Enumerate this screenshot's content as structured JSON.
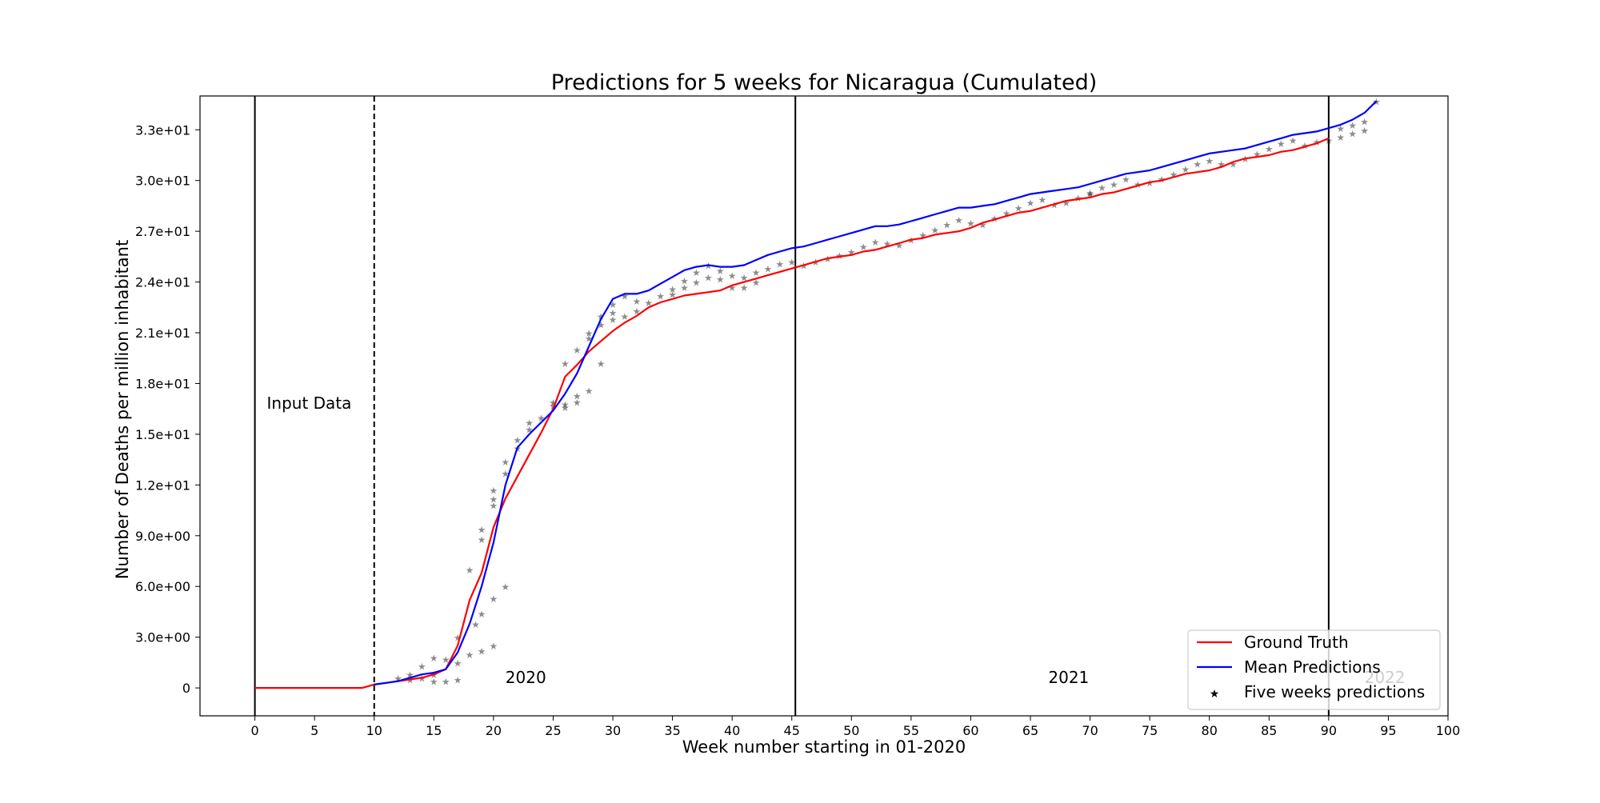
{
  "chart_data": {
    "type": "line",
    "title": "Predictions for 5 weeks for Nicaragua (Cumulated)",
    "xlabel": "Week number starting in 01-2020",
    "ylabel": "Number of Deaths per million inhabitant",
    "xlim": [
      -4.6,
      100
    ],
    "ylim": [
      -1.65,
      35.0
    ],
    "x_ticks": [
      0,
      5,
      10,
      15,
      20,
      25,
      30,
      35,
      40,
      45,
      50,
      55,
      60,
      65,
      70,
      75,
      80,
      85,
      90,
      95,
      100
    ],
    "x_tick_labels": [
      "0",
      "5",
      "10",
      "15",
      "20",
      "25",
      "30",
      "35",
      "40",
      "45",
      "50",
      "55",
      "60",
      "65",
      "70",
      "75",
      "80",
      "85",
      "90",
      "95",
      "100"
    ],
    "y_ticks": [
      0,
      3,
      6,
      9,
      12,
      15,
      18,
      21,
      24,
      27,
      30,
      33
    ],
    "y_tick_labels": [
      "0",
      "3.0e+00",
      "6.0e+00",
      "9.0e+00",
      "1.2e+01",
      "1.5e+01",
      "1.8e+01",
      "2.1e+01",
      "2.4e+01",
      "2.7e+01",
      "3.0e+01",
      "3.3e+01"
    ],
    "grid": false,
    "legend_position": "lower-right",
    "vertical_lines": [
      {
        "x": 0,
        "style": "solid"
      },
      {
        "x": 10,
        "style": "dashed"
      },
      {
        "x": 45.3,
        "style": "solid"
      },
      {
        "x": 90,
        "style": "solid"
      }
    ],
    "annotations": [
      {
        "text": "Input Data",
        "x": 1,
        "y": 16.5,
        "color": "#000000"
      },
      {
        "text": "2020",
        "x": 21,
        "y": 0.3,
        "color": "#000000"
      },
      {
        "text": "2021",
        "x": 66.5,
        "y": 0.3,
        "color": "#000000"
      },
      {
        "text": "2022",
        "x": 93,
        "y": 0.3,
        "color": "#bbbbbb"
      }
    ],
    "series": [
      {
        "name": "Ground Truth",
        "color": "#ff0000",
        "x": [
          0,
          1,
          2,
          3,
          4,
          5,
          6,
          7,
          8,
          9,
          10,
          11,
          12,
          13,
          14,
          15,
          16,
          17,
          18,
          19,
          20,
          21,
          22,
          23,
          24,
          25,
          26,
          27,
          28,
          29,
          30,
          31,
          32,
          33,
          34,
          35,
          36,
          37,
          38,
          39,
          40,
          41,
          42,
          43,
          44,
          45,
          46,
          47,
          48,
          49,
          50,
          51,
          52,
          53,
          54,
          55,
          56,
          57,
          58,
          59,
          60,
          61,
          62,
          63,
          64,
          65,
          66,
          67,
          68,
          69,
          70,
          71,
          72,
          73,
          74,
          75,
          76,
          77,
          78,
          79,
          80,
          81,
          82,
          83,
          84,
          85,
          86,
          87,
          88,
          89,
          90
        ],
        "values": [
          0,
          0,
          0,
          0,
          0,
          0,
          0,
          0,
          0,
          0,
          0.2,
          0.3,
          0.4,
          0.5,
          0.6,
          0.8,
          1.1,
          2.5,
          5.2,
          6.8,
          9.5,
          11.2,
          12.5,
          13.8,
          15.1,
          16.5,
          18.4,
          19.1,
          19.9,
          20.5,
          21.1,
          21.6,
          22.0,
          22.5,
          22.8,
          23.0,
          23.2,
          23.3,
          23.4,
          23.5,
          23.8,
          24.0,
          24.2,
          24.4,
          24.6,
          24.8,
          25.0,
          25.2,
          25.4,
          25.5,
          25.6,
          25.8,
          25.9,
          26.1,
          26.3,
          26.5,
          26.6,
          26.8,
          26.9,
          27.0,
          27.2,
          27.5,
          27.7,
          27.9,
          28.1,
          28.2,
          28.4,
          28.6,
          28.8,
          28.9,
          29.0,
          29.2,
          29.3,
          29.5,
          29.7,
          29.9,
          30.0,
          30.2,
          30.4,
          30.5,
          30.6,
          30.8,
          31.1,
          31.3,
          31.4,
          31.5,
          31.7,
          31.8,
          32.0,
          32.2,
          32.5
        ]
      },
      {
        "name": "Mean Predictions",
        "color": "#0000ff",
        "x": [
          10,
          11,
          12,
          13,
          14,
          15,
          16,
          17,
          18,
          19,
          20,
          21,
          22,
          23,
          24,
          25,
          26,
          27,
          28,
          29,
          30,
          31,
          32,
          33,
          34,
          35,
          36,
          37,
          38,
          39,
          40,
          41,
          42,
          43,
          44,
          45,
          46,
          47,
          48,
          49,
          50,
          51,
          52,
          53,
          54,
          55,
          56,
          57,
          58,
          59,
          60,
          61,
          62,
          63,
          64,
          65,
          66,
          67,
          68,
          69,
          70,
          71,
          72,
          73,
          74,
          75,
          76,
          77,
          78,
          79,
          80,
          81,
          82,
          83,
          84,
          85,
          86,
          87,
          88,
          89,
          90,
          91,
          92,
          93,
          94
        ],
        "values": [
          0.2,
          0.3,
          0.4,
          0.6,
          0.8,
          0.9,
          1.1,
          2.1,
          3.8,
          6.0,
          8.6,
          12.0,
          14.2,
          15.0,
          15.7,
          16.4,
          17.4,
          18.6,
          20.2,
          21.8,
          23.0,
          23.3,
          23.3,
          23.5,
          23.9,
          24.3,
          24.7,
          24.9,
          25.0,
          24.9,
          24.9,
          25.0,
          25.3,
          25.6,
          25.8,
          26.0,
          26.1,
          26.3,
          26.5,
          26.7,
          26.9,
          27.1,
          27.3,
          27.3,
          27.4,
          27.6,
          27.8,
          28.0,
          28.2,
          28.4,
          28.4,
          28.5,
          28.6,
          28.8,
          29.0,
          29.2,
          29.3,
          29.4,
          29.5,
          29.6,
          29.8,
          30.0,
          30.2,
          30.4,
          30.5,
          30.6,
          30.8,
          31.0,
          31.2,
          31.4,
          31.6,
          31.7,
          31.8,
          31.9,
          32.1,
          32.3,
          32.5,
          32.7,
          32.8,
          32.9,
          33.1,
          33.3,
          33.6,
          34.0,
          34.7
        ]
      }
    ],
    "scatter": {
      "name": "Five weeks predictions",
      "marker": "star",
      "legend_color": "#9fd0e8",
      "points": [
        {
          "x": 12,
          "y": 0.6,
          "c": "#f5b041"
        },
        {
          "x": 13,
          "y": 0.8,
          "c": "#f5b041"
        },
        {
          "x": 14,
          "y": 1.3,
          "c": "#f5b041"
        },
        {
          "x": 15,
          "y": 1.8,
          "c": "#f5b041"
        },
        {
          "x": 16,
          "y": 1.7,
          "c": "#f5b041"
        },
        {
          "x": 13,
          "y": 0.5,
          "c": "#1f77b4"
        },
        {
          "x": 14,
          "y": 0.6,
          "c": "#1f77b4"
        },
        {
          "x": 15,
          "y": 0.8,
          "c": "#1f77b4"
        },
        {
          "x": 15,
          "y": 0.4,
          "c": "#8c564b"
        },
        {
          "x": 16,
          "y": 0.4,
          "c": "#8c564b"
        },
        {
          "x": 17,
          "y": 0.5,
          "c": "#8c564b"
        },
        {
          "x": 17,
          "y": 1.5,
          "c": "#9467bd"
        },
        {
          "x": 18,
          "y": 2.0,
          "c": "#9467bd"
        },
        {
          "x": 19,
          "y": 2.2,
          "c": "#e377c2"
        },
        {
          "x": 20,
          "y": 2.5,
          "c": "#e377c2"
        },
        {
          "x": 17,
          "y": 3.0,
          "c": "#bcbd22"
        },
        {
          "x": 18,
          "y": 7.0,
          "c": "#bcbd22"
        },
        {
          "x": 19,
          "y": 8.8,
          "c": "#bcbd22"
        },
        {
          "x": 20,
          "y": 10.8,
          "c": "#bcbd22"
        },
        {
          "x": 21,
          "y": 12.7,
          "c": "#bcbd22"
        },
        {
          "x": 19,
          "y": 9.4,
          "c": "#17becf"
        },
        {
          "x": 20,
          "y": 11.7,
          "c": "#17becf"
        },
        {
          "x": 21,
          "y": 13.4,
          "c": "#17becf"
        },
        {
          "x": 22,
          "y": 14.7,
          "c": "#17becf"
        },
        {
          "x": 23,
          "y": 15.7,
          "c": "#17becf"
        },
        {
          "x": 19,
          "y": 4.4,
          "c": "#7f7f7f"
        },
        {
          "x": 20,
          "y": 5.3,
          "c": "#7f7f7f"
        },
        {
          "x": 21,
          "y": 6.0,
          "c": "#7f7f7f"
        },
        {
          "x": 18.5,
          "y": 3.8,
          "c": "#8c564b"
        },
        {
          "x": 20,
          "y": 11.2,
          "c": "#9467bd"
        },
        {
          "x": 22,
          "y": 14.2,
          "c": "#2ca02c"
        },
        {
          "x": 23,
          "y": 15.3,
          "c": "#2ca02c"
        },
        {
          "x": 24,
          "y": 16.0,
          "c": "#2ca02c"
        },
        {
          "x": 25,
          "y": 16.7,
          "c": "#2ca02c"
        },
        {
          "x": 25,
          "y": 16.9,
          "c": "#ff7f0e"
        },
        {
          "x": 26,
          "y": 16.6,
          "c": "#ff7f0e"
        },
        {
          "x": 27,
          "y": 16.9,
          "c": "#ff7f0e"
        },
        {
          "x": 26,
          "y": 19.2,
          "c": "#e377c2"
        },
        {
          "x": 27,
          "y": 20.0,
          "c": "#8c564b"
        },
        {
          "x": 28,
          "y": 20.7,
          "c": "#bcbd22"
        },
        {
          "x": 29,
          "y": 21.5,
          "c": "#bcbd22"
        },
        {
          "x": 30,
          "y": 22.2,
          "c": "#7f7f7f"
        },
        {
          "x": 26,
          "y": 16.8,
          "c": "#7f7f7f"
        },
        {
          "x": 27,
          "y": 17.3,
          "c": "#9467bd"
        },
        {
          "x": 28,
          "y": 17.6,
          "c": "#9467bd"
        },
        {
          "x": 29,
          "y": 19.2,
          "c": "#8c564b"
        },
        {
          "x": 28,
          "y": 21.0,
          "c": "#ff7f0e"
        },
        {
          "x": 29,
          "y": 22.0,
          "c": "#ff7f0e"
        },
        {
          "x": 30,
          "y": 22.7,
          "c": "#bcbd22"
        },
        {
          "x": 31,
          "y": 23.2,
          "c": "#7f7f7f"
        },
        {
          "x": 32,
          "y": 22.9,
          "c": "#bcbd22"
        },
        {
          "x": 30,
          "y": 21.8,
          "c": "#2ca02c"
        },
        {
          "x": 31,
          "y": 22.0,
          "c": "#1f77b4"
        },
        {
          "x": 32,
          "y": 22.3,
          "c": "#17becf"
        },
        {
          "x": 33,
          "y": 22.8,
          "c": "#8c564b"
        },
        {
          "x": 34,
          "y": 23.2,
          "c": "#1f77b4"
        },
        {
          "x": 35,
          "y": 23.6,
          "c": "#e377c2"
        },
        {
          "x": 36,
          "y": 24.1,
          "c": "#d62728"
        },
        {
          "x": 37,
          "y": 24.6,
          "c": "#9467bd"
        },
        {
          "x": 38,
          "y": 25.0,
          "c": "#9467bd"
        },
        {
          "x": 39,
          "y": 24.7,
          "c": "#8c564b"
        },
        {
          "x": 35,
          "y": 23.3,
          "c": "#bcbd22"
        },
        {
          "x": 36,
          "y": 23.7,
          "c": "#2ca02c"
        },
        {
          "x": 37,
          "y": 24.0,
          "c": "#7f7f7f"
        },
        {
          "x": 38,
          "y": 24.3,
          "c": "#d62728"
        },
        {
          "x": 39,
          "y": 24.2,
          "c": "#9467bd"
        },
        {
          "x": 40,
          "y": 24.4,
          "c": "#e377c2"
        },
        {
          "x": 40,
          "y": 23.7,
          "c": "#7f7f7f"
        },
        {
          "x": 41,
          "y": 23.7,
          "c": "#2ca02c"
        },
        {
          "x": 42,
          "y": 24.0,
          "c": "#1f77b4"
        },
        {
          "x": 41,
          "y": 24.3,
          "c": "#ff7f0e"
        },
        {
          "x": 42,
          "y": 24.6,
          "c": "#bcbd22"
        },
        {
          "x": 43,
          "y": 24.8,
          "c": "#ff7f0e"
        },
        {
          "x": 44,
          "y": 25.1,
          "c": "#f5b041"
        },
        {
          "x": 45,
          "y": 25.2,
          "c": "#ff7f0e"
        },
        {
          "x": 46,
          "y": 25.0,
          "c": "#1f77b4"
        },
        {
          "x": 47,
          "y": 25.2,
          "c": "#17becf"
        },
        {
          "x": 48,
          "y": 25.4,
          "c": "#9467bd"
        },
        {
          "x": 49,
          "y": 25.6,
          "c": "#bcbd22"
        },
        {
          "x": 50,
          "y": 25.8,
          "c": "#bcbd22"
        },
        {
          "x": 51,
          "y": 26.1,
          "c": "#2ca02c"
        },
        {
          "x": 52,
          "y": 26.4,
          "c": "#bcbd22"
        },
        {
          "x": 53,
          "y": 26.3,
          "c": "#1f77b4"
        },
        {
          "x": 54,
          "y": 26.2,
          "c": "#7f7f7f"
        },
        {
          "x": 55,
          "y": 26.5,
          "c": "#9467bd"
        },
        {
          "x": 56,
          "y": 26.8,
          "c": "#7f7f7f"
        },
        {
          "x": 57,
          "y": 27.1,
          "c": "#1f77b4"
        },
        {
          "x": 58,
          "y": 27.4,
          "c": "#8c564b"
        },
        {
          "x": 59,
          "y": 27.7,
          "c": "#9467bd"
        },
        {
          "x": 60,
          "y": 27.5,
          "c": "#bcbd22"
        },
        {
          "x": 61,
          "y": 27.4,
          "c": "#2ca02c"
        },
        {
          "x": 62,
          "y": 27.8,
          "c": "#1f77b4"
        },
        {
          "x": 63,
          "y": 28.1,
          "c": "#d62728"
        },
        {
          "x": 64,
          "y": 28.4,
          "c": "#2ca02c"
        },
        {
          "x": 65,
          "y": 28.7,
          "c": "#bcbd22"
        },
        {
          "x": 66,
          "y": 28.9,
          "c": "#2ca02c"
        },
        {
          "x": 67,
          "y": 28.6,
          "c": "#9467bd"
        },
        {
          "x": 68,
          "y": 28.7,
          "c": "#bcbd22"
        },
        {
          "x": 69,
          "y": 29.0,
          "c": "#7f7f7f"
        },
        {
          "x": 70,
          "y": 29.2,
          "c": "#2ca02c"
        },
        {
          "x": 70,
          "y": 29.3,
          "c": "#17becf"
        },
        {
          "x": 71,
          "y": 29.6,
          "c": "#1f77b4"
        },
        {
          "x": 72,
          "y": 29.8,
          "c": "#17becf"
        },
        {
          "x": 73,
          "y": 30.1,
          "c": "#17becf"
        },
        {
          "x": 74,
          "y": 29.8,
          "c": "#bcbd22"
        },
        {
          "x": 75,
          "y": 29.9,
          "c": "#7f7f7f"
        },
        {
          "x": 76,
          "y": 30.1,
          "c": "#8c564b"
        },
        {
          "x": 77,
          "y": 30.4,
          "c": "#9467bd"
        },
        {
          "x": 78,
          "y": 30.7,
          "c": "#e377c2"
        },
        {
          "x": 79,
          "y": 31.0,
          "c": "#e377c2"
        },
        {
          "x": 80,
          "y": 31.2,
          "c": "#e377c2"
        },
        {
          "x": 81,
          "y": 31.0,
          "c": "#9467bd"
        },
        {
          "x": 82,
          "y": 31.0,
          "c": "#7f7f7f"
        },
        {
          "x": 83,
          "y": 31.3,
          "c": "#2ca02c"
        },
        {
          "x": 84,
          "y": 31.6,
          "c": "#d62728"
        },
        {
          "x": 85,
          "y": 31.9,
          "c": "#8c564b"
        },
        {
          "x": 86,
          "y": 32.2,
          "c": "#e377c2"
        },
        {
          "x": 87,
          "y": 32.4,
          "c": "#d62728"
        },
        {
          "x": 88,
          "y": 32.1,
          "c": "#7f7f7f"
        },
        {
          "x": 89,
          "y": 32.3,
          "c": "#bcbd22"
        },
        {
          "x": 90,
          "y": 32.4,
          "c": "#7f7f7f"
        },
        {
          "x": 91,
          "y": 32.6,
          "c": "#1f77b4"
        },
        {
          "x": 92,
          "y": 32.8,
          "c": "#2ca02c"
        },
        {
          "x": 93,
          "y": 33.0,
          "c": "#17becf"
        },
        {
          "x": 94,
          "y": 34.7,
          "c": "#9467bd"
        },
        {
          "x": 91,
          "y": 33.1,
          "c": "#9fd0e8"
        },
        {
          "x": 92,
          "y": 33.3,
          "c": "#9fd0e8"
        },
        {
          "x": 93,
          "y": 33.5,
          "c": "#9fd0e8"
        }
      ]
    }
  },
  "legend": {
    "items": [
      {
        "label": "Ground Truth",
        "color": "#ff0000",
        "kind": "line"
      },
      {
        "label": "Mean Predictions",
        "color": "#0000ff",
        "kind": "line"
      },
      {
        "label": "Five weeks predictions",
        "color": "#9fd0e8",
        "kind": "star"
      }
    ]
  }
}
